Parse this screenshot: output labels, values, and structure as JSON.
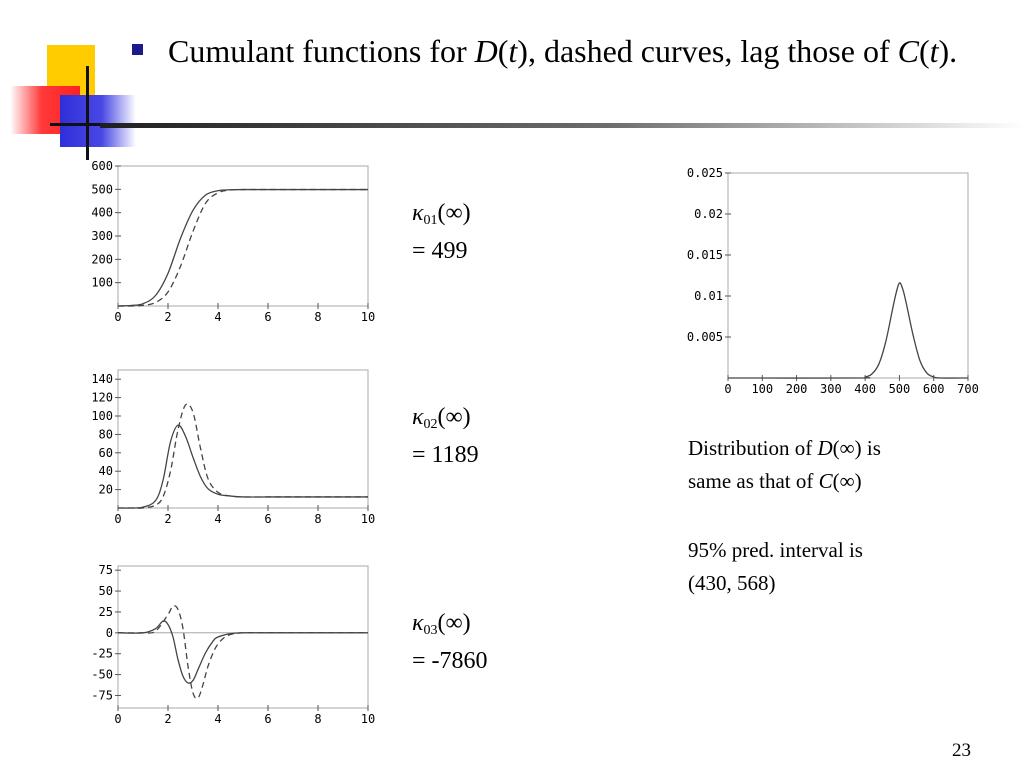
{
  "slide": {
    "title": {
      "part1": "Cumulant functions for ",
      "d_symbol": "D",
      "t_open": "(",
      "t_var": "t",
      "t_close": ")",
      "part2": ", dashed curves, lag those of ",
      "c_symbol": "C",
      "c_open": "(",
      "c_var": "t",
      "c_close": ")."
    },
    "page_number": "23",
    "accent_colors": {
      "yellow": "#ffcc00",
      "red": "#ff2d2d",
      "blue": "#2f2fd8",
      "bullet": "#1a1a8c"
    }
  },
  "annotations": {
    "k1": {
      "symbol": "κ",
      "sub": "01",
      "arg": "(∞)",
      "value": "= 499"
    },
    "k2": {
      "symbol": "κ",
      "sub": "02",
      "arg": "(∞)",
      "value": "= 1189"
    },
    "k3": {
      "symbol": "κ",
      "sub": "03",
      "arg": "(∞)",
      "value": "= -7860"
    }
  },
  "notes": {
    "line1_a": "Distribution of ",
    "line1_sym": "D",
    "line1_b": "(∞) is",
    "line2_a": "same as that of ",
    "line2_sym": "C",
    "line2_b": "(∞)",
    "line3": "95% pred. interval is",
    "line4": "(430, 568)"
  },
  "chart_data": [
    {
      "type": "line",
      "xlim": [
        0,
        10
      ],
      "ylim": [
        0,
        600
      ],
      "x_ticks": [
        0,
        2,
        4,
        6,
        8,
        10
      ],
      "y_ticks": [
        100,
        200,
        300,
        400,
        500,
        600
      ],
      "series": [
        {
          "style": "solid",
          "x": [
            0,
            0.5,
            1,
            1.5,
            2,
            2.5,
            3,
            3.5,
            4,
            4.5,
            5,
            6,
            7,
            8,
            9,
            10
          ],
          "y": [
            0,
            2,
            10,
            45,
            140,
            290,
            410,
            475,
            494,
            498,
            499,
            499,
            499,
            499,
            499,
            499
          ]
        },
        {
          "style": "dashed",
          "x": [
            0,
            0.5,
            1,
            1.5,
            2,
            2.5,
            3,
            3.5,
            4,
            4.5,
            5,
            6,
            7,
            8,
            9,
            10
          ],
          "y": [
            0,
            0,
            3,
            15,
            60,
            170,
            320,
            440,
            485,
            497,
            499,
            499,
            499,
            499,
            499,
            499
          ]
        }
      ]
    },
    {
      "type": "line",
      "xlim": [
        0,
        10
      ],
      "ylim": [
        0,
        150
      ],
      "x_ticks": [
        0,
        2,
        4,
        6,
        8,
        10
      ],
      "y_ticks": [
        20,
        40,
        60,
        80,
        100,
        120,
        140
      ],
      "series": [
        {
          "style": "solid",
          "x": [
            0,
            0.5,
            1,
            1.5,
            1.8,
            2.1,
            2.4,
            2.7,
            3,
            3.3,
            3.6,
            4,
            4.5,
            5,
            6,
            7,
            8,
            9,
            10
          ],
          "y": [
            0,
            0,
            1,
            8,
            30,
            72,
            90,
            78,
            55,
            34,
            21,
            15,
            13,
            12,
            12,
            12,
            12,
            12,
            12
          ]
        },
        {
          "style": "dashed",
          "x": [
            0,
            0.5,
            1,
            1.5,
            1.8,
            2.1,
            2.4,
            2.7,
            3,
            3.3,
            3.6,
            4,
            4.5,
            5,
            6,
            7,
            8,
            9,
            10
          ],
          "y": [
            0,
            0,
            0,
            3,
            12,
            40,
            85,
            112,
            104,
            65,
            32,
            17,
            13,
            12,
            12,
            12,
            12,
            12,
            12
          ]
        }
      ]
    },
    {
      "type": "line",
      "xlim": [
        0,
        10
      ],
      "ylim": [
        -90,
        80
      ],
      "x_ticks": [
        0,
        2,
        4,
        6,
        8,
        10
      ],
      "y_ticks": [
        75,
        50,
        25,
        0,
        -25,
        -50,
        -75
      ],
      "series": [
        {
          "style": "solid",
          "x": [
            0,
            1,
            1.5,
            1.8,
            2,
            2.2,
            2.4,
            2.6,
            2.8,
            3,
            3.2,
            3.5,
            3.8,
            4,
            4.5,
            5,
            6,
            7,
            8,
            9,
            10
          ],
          "y": [
            0,
            0,
            5,
            14,
            10,
            -5,
            -32,
            -52,
            -60,
            -57,
            -44,
            -24,
            -10,
            -5,
            -1,
            0,
            0,
            0,
            0,
            0,
            0
          ]
        },
        {
          "style": "dashed",
          "x": [
            0,
            1,
            1.5,
            2,
            2.2,
            2.4,
            2.6,
            2.8,
            3,
            3.2,
            3.4,
            3.6,
            3.9,
            4.2,
            4.5,
            5,
            6,
            7,
            8,
            9,
            10
          ],
          "y": [
            0,
            0,
            2,
            22,
            32,
            28,
            5,
            -40,
            -72,
            -78,
            -62,
            -40,
            -18,
            -7,
            -2,
            0,
            0,
            0,
            0,
            0,
            0
          ]
        }
      ]
    },
    {
      "type": "line",
      "xlim": [
        0,
        700
      ],
      "ylim": [
        0,
        0.025
      ],
      "x_ticks": [
        0,
        100,
        200,
        300,
        400,
        500,
        600,
        700
      ],
      "y_ticks": [
        "0.005",
        "0.01",
        "0.015",
        "0.02",
        "0.025"
      ],
      "series": [
        {
          "style": "solid",
          "x": [
            0,
            380,
            400,
            420,
            440,
            460,
            480,
            490,
            500,
            510,
            520,
            540,
            560,
            580,
            600,
            620,
            700
          ],
          "y": [
            0,
            0,
            0.0001,
            0.0005,
            0.0017,
            0.0044,
            0.0084,
            0.0103,
            0.0116,
            0.0108,
            0.0091,
            0.0052,
            0.0021,
            0.0006,
            0.00012,
            0,
            0
          ]
        }
      ]
    }
  ]
}
